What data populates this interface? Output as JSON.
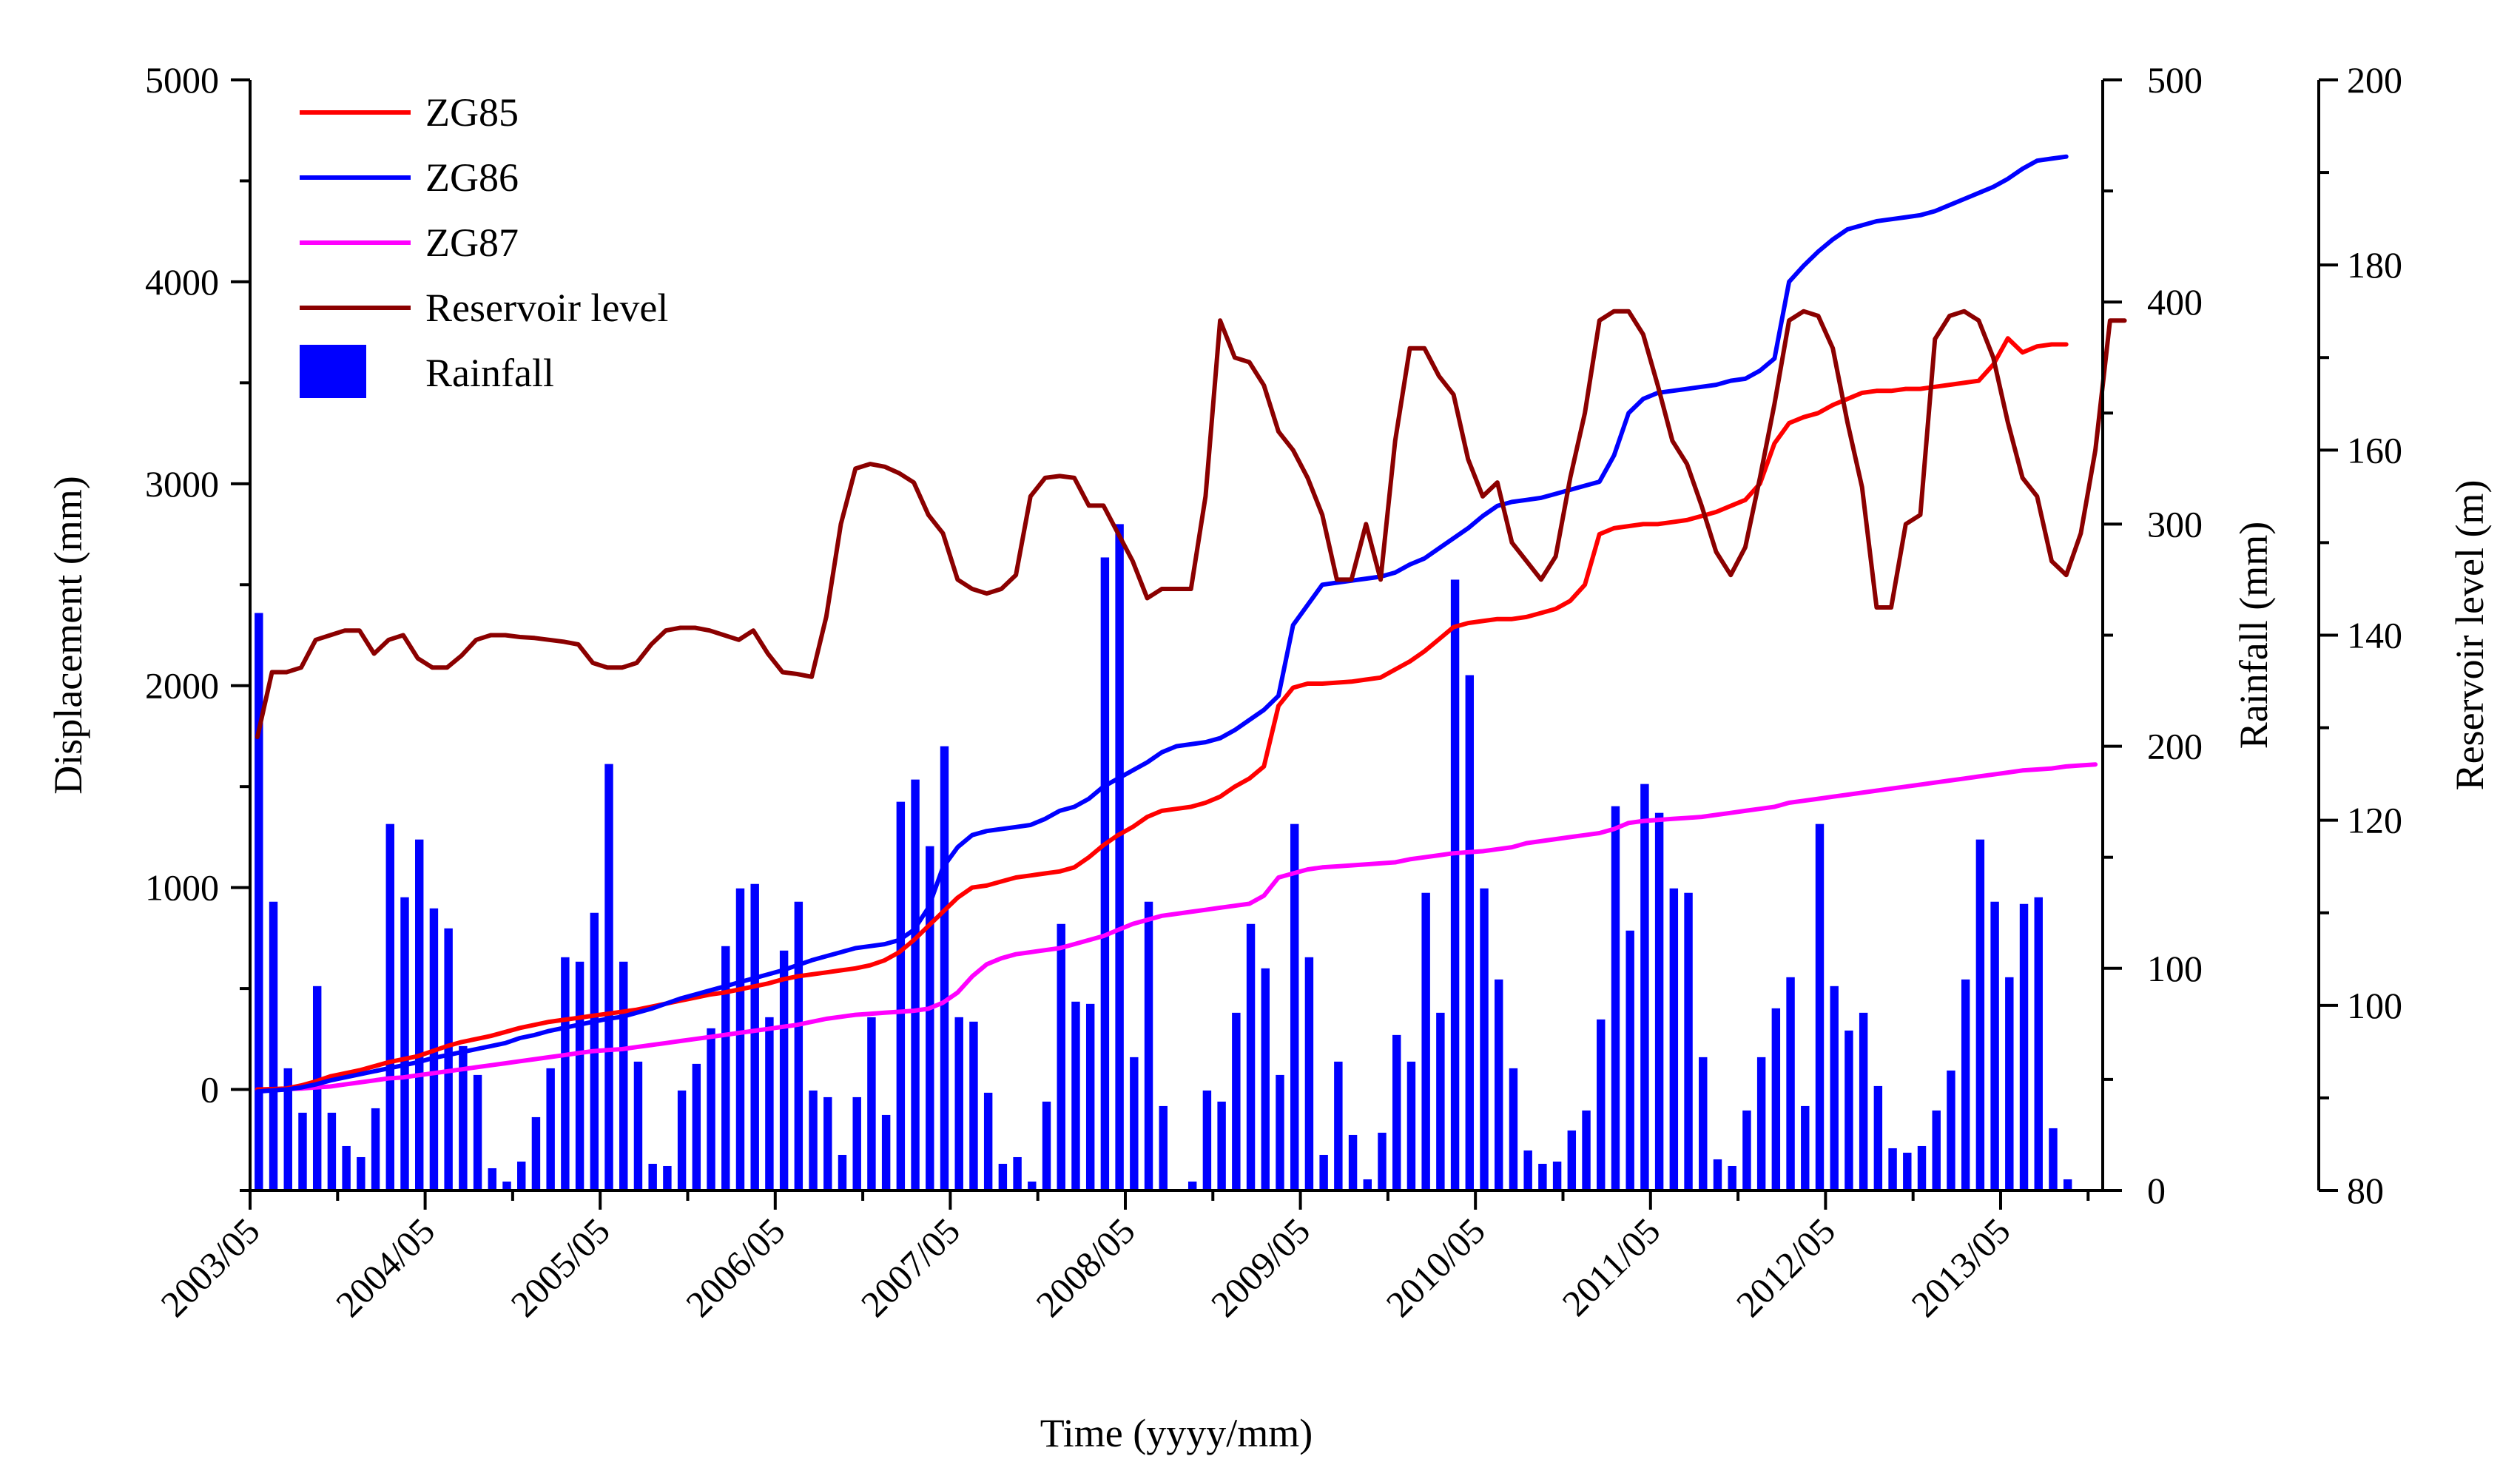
{
  "chart_data": {
    "type": "line+bar",
    "x_axis": {
      "label": "Time (yyyy/mm)",
      "tick_labels": [
        "2003/05",
        "2004/05",
        "2005/05",
        "2006/05",
        "2007/05",
        "2008/05",
        "2009/05",
        "2010/05",
        "2011/05",
        "2012/05",
        "2013/05"
      ],
      "range_months": [
        0,
        127
      ]
    },
    "y_axes": {
      "displacement": {
        "label": "Displacement (mm)",
        "range": [
          -500,
          5000
        ],
        "ticks": [
          0,
          1000,
          2000,
          3000,
          4000,
          5000
        ]
      },
      "rainfall": {
        "label": "Rainfall (mm)",
        "range": [
          0,
          500
        ],
        "ticks": [
          0,
          100,
          200,
          300,
          400,
          500
        ]
      },
      "reservoir": {
        "label": "Reservoir level (m)",
        "range": [
          80,
          200
        ],
        "ticks": [
          80,
          100,
          120,
          140,
          160,
          180,
          200
        ]
      }
    },
    "legend": [
      {
        "name": "ZG85",
        "color": "#ff0000",
        "kind": "line"
      },
      {
        "name": "ZG86",
        "color": "#0000ff",
        "kind": "line"
      },
      {
        "name": "ZG87",
        "color": "#ff00ff",
        "kind": "line"
      },
      {
        "name": "Reservoir level",
        "color": "#8b0000",
        "kind": "line"
      },
      {
        "name": "Rainfall",
        "color": "#0000ff",
        "kind": "bar"
      }
    ],
    "rainfall_monthly_mm": [
      260,
      130,
      55,
      35,
      92,
      35,
      20,
      15,
      37,
      165,
      132,
      158,
      127,
      118,
      65,
      52,
      10,
      4,
      13,
      33,
      55,
      105,
      103,
      125,
      192,
      103,
      58,
      12,
      11,
      45,
      57,
      73,
      110,
      136,
      138,
      78,
      108,
      130,
      45,
      42,
      16,
      42,
      78,
      34,
      175,
      185,
      155,
      200,
      78,
      76,
      44,
      12,
      15,
      4,
      40,
      120,
      85,
      84,
      285,
      300,
      60,
      130,
      38,
      0,
      4,
      45,
      40,
      80,
      120,
      100,
      52,
      165,
      105,
      16,
      58,
      25,
      5,
      26,
      70,
      58,
      134,
      80,
      275,
      232,
      136,
      95,
      55,
      18,
      12,
      13,
      27,
      36,
      77,
      173,
      117,
      183,
      170,
      136,
      134,
      60,
      14,
      11,
      36,
      60,
      82,
      96,
      38,
      165,
      92,
      72,
      80,
      47,
      19,
      17,
      20,
      36,
      54,
      95,
      158,
      130,
      96,
      129,
      132,
      28,
      5
    ],
    "reservoir_level_m": [
      129,
      136,
      136,
      136.5,
      139.5,
      140,
      140.5,
      140.5,
      138,
      139.5,
      140,
      137.5,
      136.5,
      136.5,
      137.8,
      139.5,
      140,
      140,
      139.8,
      139.7,
      139.5,
      139.3,
      139,
      137,
      136.5,
      136.5,
      137,
      139,
      140.5,
      140.8,
      140.8,
      140.5,
      140,
      139.5,
      140.5,
      138,
      136,
      135.8,
      135.5,
      142,
      152,
      158,
      158.5,
      158.2,
      157.5,
      156.5,
      153,
      151,
      146,
      145,
      144.5,
      145,
      146.5,
      155,
      157,
      157.2,
      157,
      154,
      154,
      151,
      148,
      144,
      145,
      145,
      145,
      155,
      174,
      170,
      169.5,
      167,
      162,
      160,
      157,
      153,
      146,
      146,
      152,
      146,
      161,
      171,
      171,
      168,
      166,
      159,
      155,
      156.5,
      150,
      148,
      146,
      148.5,
      157,
      164,
      174,
      175,
      175,
      172.5,
      167,
      161,
      158.5,
      154,
      149,
      146.5,
      149.5,
      157,
      165,
      174,
      175,
      174.5,
      171,
      163,
      156,
      143,
      143,
      152,
      153,
      172,
      174.5,
      175,
      174,
      170,
      163,
      157,
      155,
      148,
      146.5,
      151,
      160,
      174,
      174
    ],
    "zg85_mm": [
      0,
      2,
      5,
      20,
      40,
      65,
      80,
      95,
      115,
      135,
      150,
      165,
      190,
      215,
      235,
      250,
      265,
      285,
      305,
      320,
      335,
      345,
      355,
      365,
      375,
      385,
      395,
      410,
      425,
      440,
      455,
      470,
      480,
      495,
      510,
      525,
      545,
      560,
      570,
      580,
      590,
      600,
      615,
      640,
      680,
      740,
      810,
      880,
      950,
      1000,
      1010,
      1030,
      1050,
      1060,
      1070,
      1080,
      1100,
      1150,
      1210,
      1260,
      1300,
      1350,
      1380,
      1390,
      1400,
      1420,
      1450,
      1500,
      1540,
      1600,
      1900,
      1990,
      2010,
      2010,
      2015,
      2020,
      2030,
      2040,
      2080,
      2120,
      2170,
      2230,
      2290,
      2310,
      2320,
      2330,
      2330,
      2340,
      2360,
      2380,
      2420,
      2500,
      2750,
      2780,
      2790,
      2800,
      2800,
      2810,
      2820,
      2840,
      2860,
      2890,
      2920,
      3000,
      3200,
      3300,
      3330,
      3350,
      3390,
      3420,
      3450,
      3460,
      3460,
      3470,
      3470,
      3480,
      3490,
      3500,
      3510,
      3590,
      3720,
      3650,
      3680,
      3690,
      3690
    ],
    "zg86_mm": [
      -10,
      -5,
      0,
      10,
      25,
      45,
      60,
      75,
      90,
      105,
      120,
      135,
      155,
      170,
      185,
      200,
      215,
      230,
      255,
      270,
      290,
      305,
      320,
      335,
      350,
      360,
      380,
      400,
      425,
      450,
      470,
      490,
      510,
      530,
      550,
      570,
      590,
      615,
      640,
      660,
      680,
      700,
      710,
      720,
      740,
      790,
      900,
      1100,
      1200,
      1260,
      1280,
      1290,
      1300,
      1310,
      1340,
      1380,
      1400,
      1440,
      1500,
      1540,
      1580,
      1620,
      1670,
      1700,
      1710,
      1720,
      1740,
      1780,
      1830,
      1880,
      1950,
      2300,
      2400,
      2500,
      2510,
      2520,
      2530,
      2540,
      2560,
      2600,
      2630,
      2680,
      2730,
      2780,
      2840,
      2890,
      2910,
      2920,
      2930,
      2950,
      2970,
      2990,
      3010,
      3140,
      3350,
      3420,
      3450,
      3460,
      3470,
      3480,
      3490,
      3510,
      3520,
      3560,
      3620,
      4000,
      4080,
      4150,
      4210,
      4260,
      4280,
      4300,
      4310,
      4320,
      4330,
      4350,
      4380,
      4410,
      4440,
      4470,
      4510,
      4560,
      4600,
      4610,
      4620
    ],
    "zg87_mm": [
      0,
      0,
      2,
      5,
      10,
      15,
      25,
      35,
      45,
      55,
      60,
      70,
      80,
      90,
      100,
      110,
      120,
      130,
      140,
      150,
      160,
      170,
      180,
      190,
      195,
      200,
      210,
      220,
      230,
      240,
      250,
      260,
      270,
      280,
      290,
      300,
      310,
      320,
      335,
      350,
      360,
      370,
      375,
      380,
      385,
      390,
      400,
      430,
      480,
      560,
      620,
      650,
      670,
      680,
      690,
      700,
      720,
      740,
      760,
      790,
      820,
      840,
      860,
      870,
      880,
      890,
      900,
      910,
      920,
      960,
      1050,
      1070,
      1090,
      1100,
      1105,
      1110,
      1115,
      1120,
      1125,
      1140,
      1150,
      1160,
      1170,
      1175,
      1180,
      1190,
      1200,
      1220,
      1230,
      1240,
      1250,
      1260,
      1270,
      1290,
      1320,
      1330,
      1335,
      1340,
      1345,
      1350,
      1360,
      1370,
      1380,
      1390,
      1400,
      1420,
      1430,
      1440,
      1450,
      1460,
      1470,
      1480,
      1490,
      1500,
      1510,
      1520,
      1530,
      1540,
      1550,
      1560,
      1570,
      1580,
      1585,
      1590,
      1600,
      1605,
      1610
    ]
  }
}
